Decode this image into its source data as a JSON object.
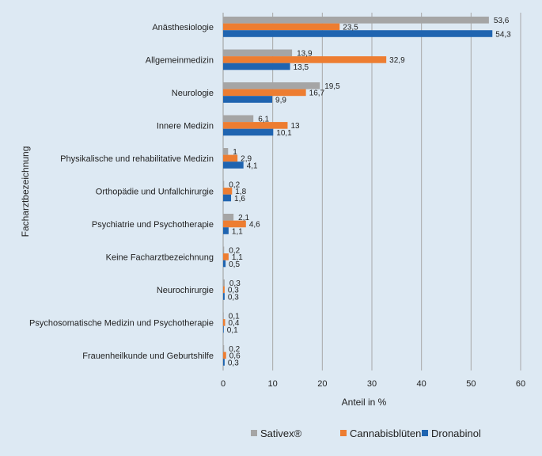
{
  "chart_data": {
    "type": "bar",
    "orientation": "horizontal",
    "xlabel": "Anteil in %",
    "ylabel": "Facharztbezeichnung",
    "xlim": [
      0,
      60
    ],
    "xticks": [
      0,
      10,
      20,
      30,
      40,
      50,
      60
    ],
    "grid": "vertical",
    "legend_position": "bottom",
    "categories": [
      "Anästhesiologie",
      "Allgemeinmedizin",
      "Neurologie",
      "Innere Medizin",
      "Physikalische und rehabilitative Medizin",
      "Orthopädie und Unfallchirurgie",
      "Psychiatrie und Psychotherapie",
      "Keine Facharztbezeichnung",
      "Neurochirurgie",
      "Psychosomatische Medizin und Psychotherapie",
      "Frauenheilkunde und Geburtshilfe"
    ],
    "series": [
      {
        "name": "Sativex®",
        "color": "#a5a5a5",
        "values": [
          53.6,
          13.9,
          19.5,
          6.1,
          1,
          0.2,
          2.1,
          0.2,
          0.3,
          0.1,
          0.2
        ],
        "labels": [
          "53,6",
          "13,9",
          "19,5",
          "6,1",
          "1",
          "0,2",
          "2,1",
          "0,2",
          "0,3",
          "0,1",
          "0,2"
        ]
      },
      {
        "name": "Cannabisblüten",
        "color": "#ed7d31",
        "values": [
          23.5,
          32.9,
          16.7,
          13,
          2.9,
          1.8,
          4.6,
          1.1,
          0.3,
          0.4,
          0.6
        ],
        "labels": [
          "23,5",
          "32,9",
          "16,7",
          "13",
          "2,9",
          "1,8",
          "4,6",
          "1,1",
          "0,3",
          "0,4",
          "0,6"
        ]
      },
      {
        "name": "Dronabinol",
        "color": "#1f64b0",
        "values": [
          54.3,
          13.5,
          9.9,
          10.1,
          4.1,
          1.6,
          1.1,
          0.5,
          0.3,
          0.1,
          0.3
        ],
        "labels": [
          "54,3",
          "13,5",
          "9,9",
          "10,1",
          "4,1",
          "1,6",
          "1,1",
          "0,5",
          "0,3",
          "0,1",
          "0,3"
        ]
      }
    ]
  }
}
